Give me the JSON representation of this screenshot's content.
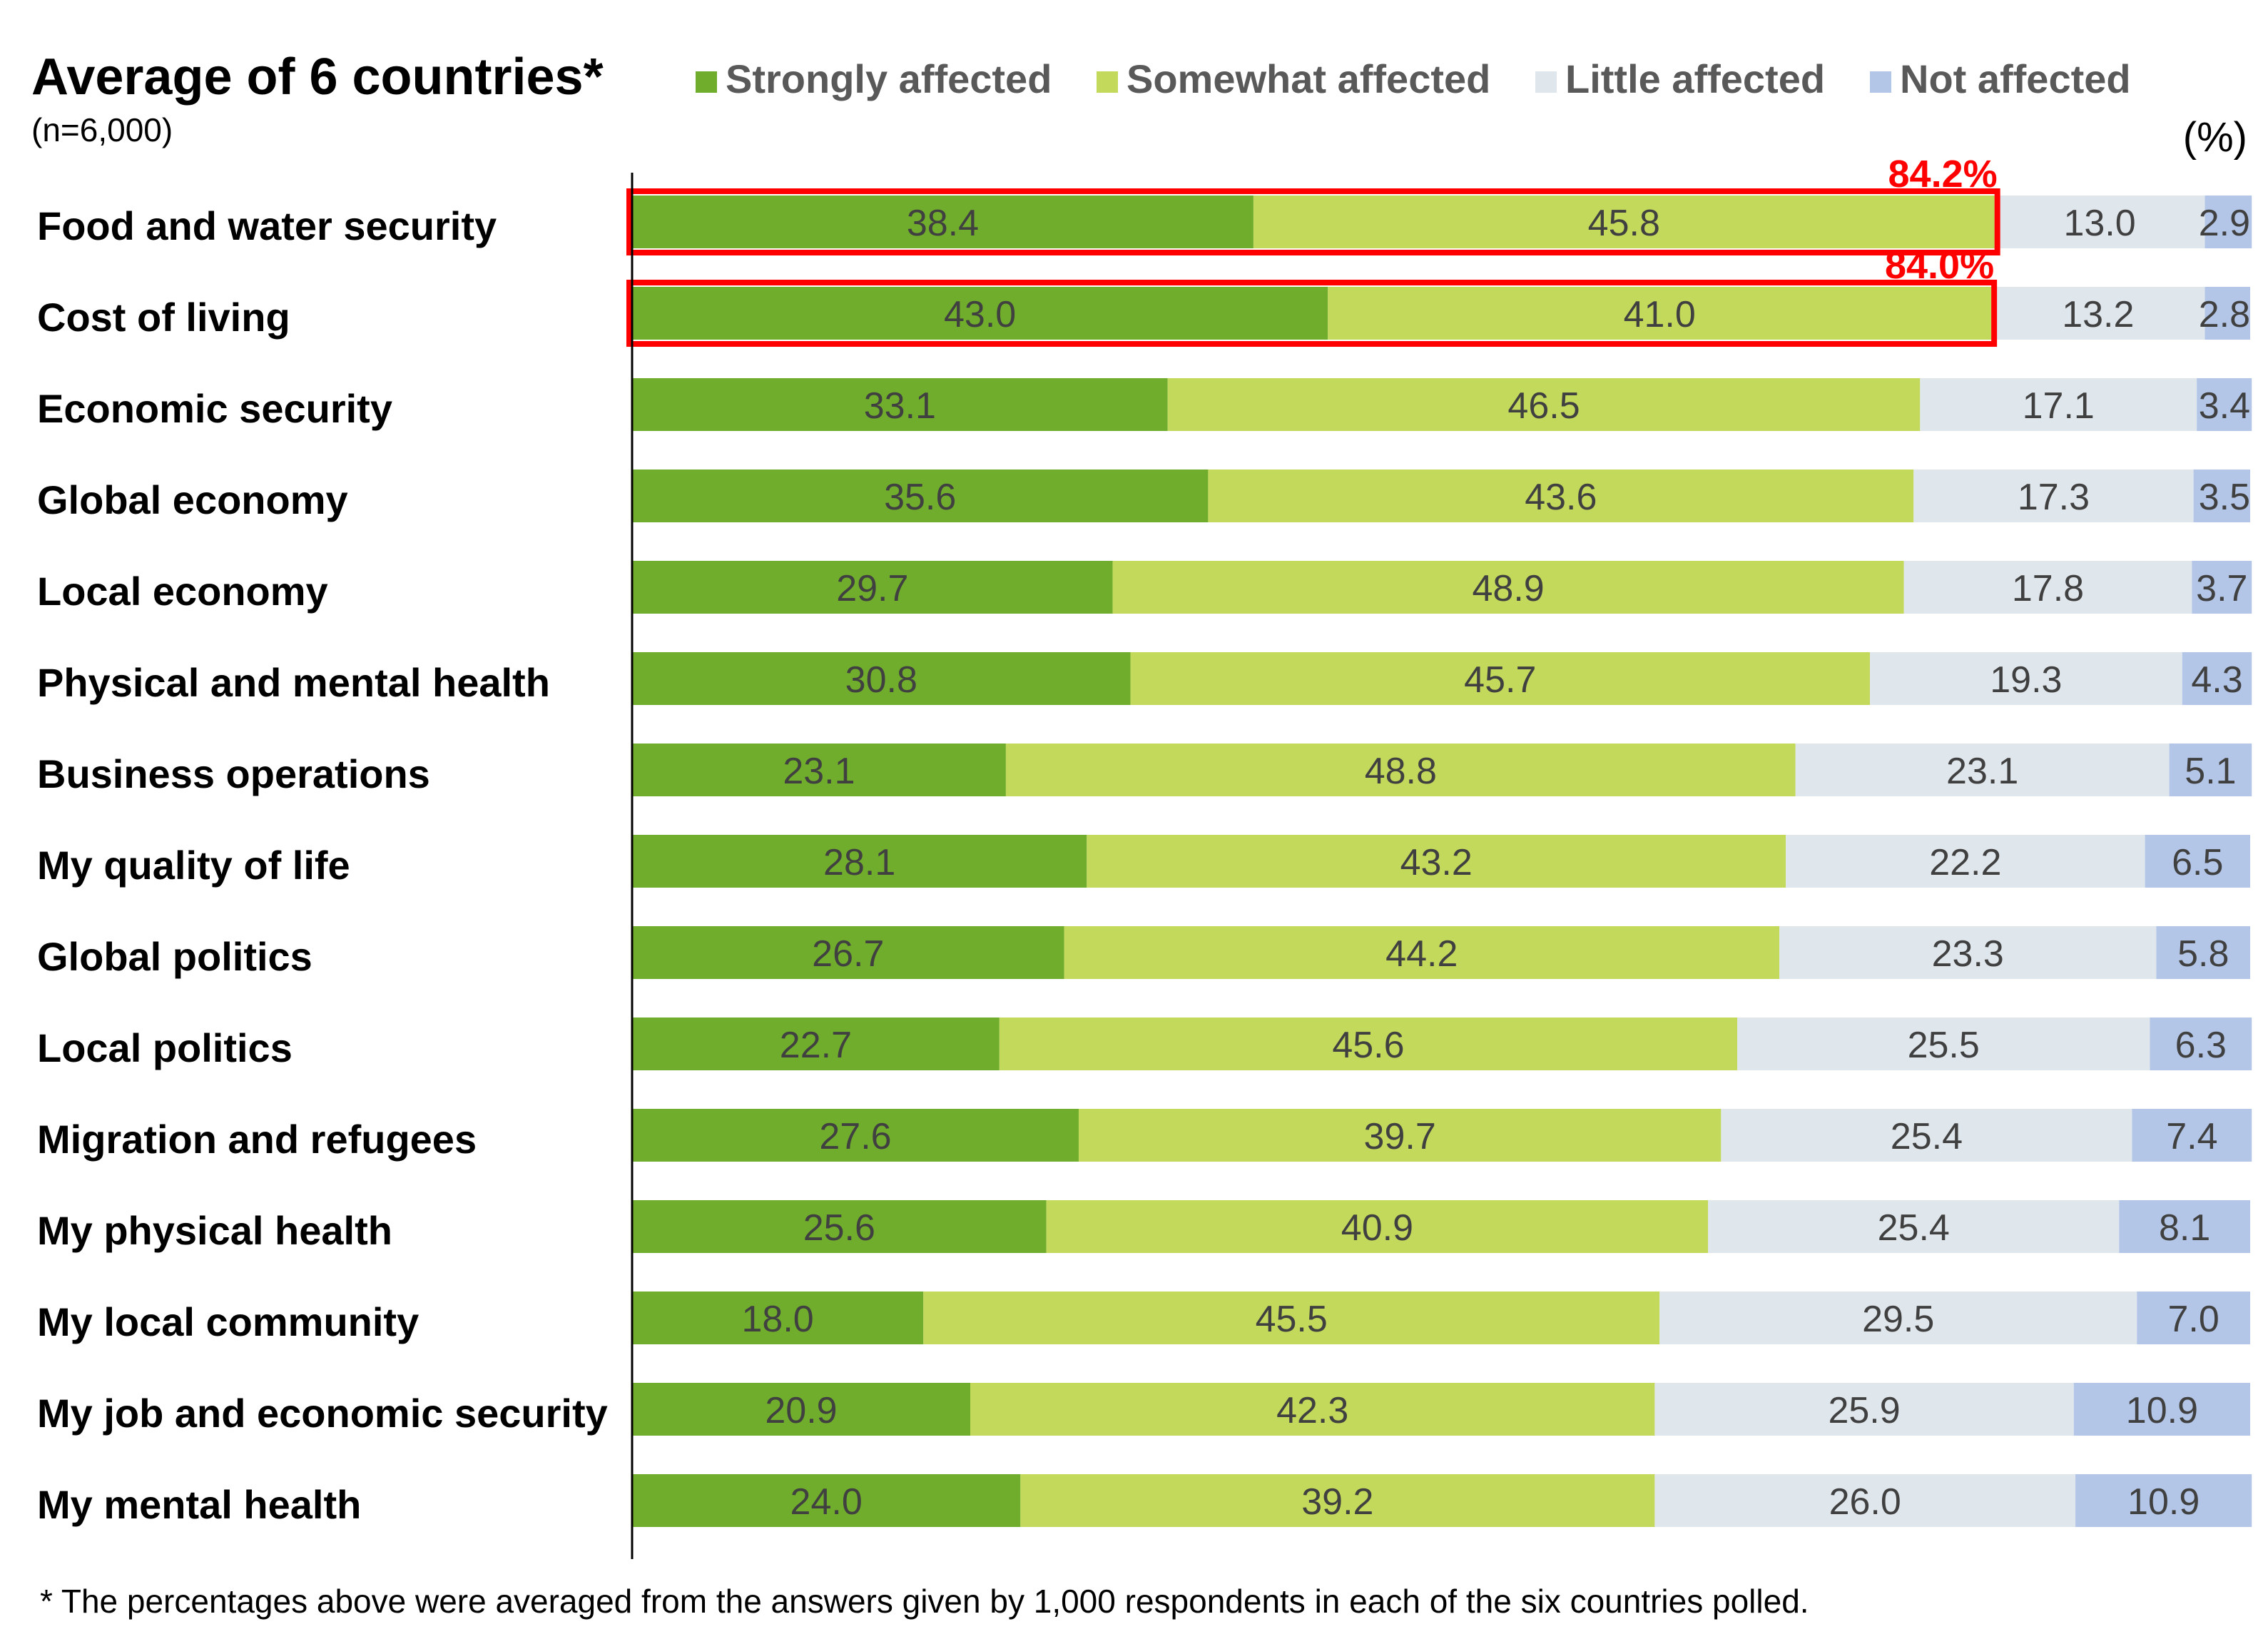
{
  "chart_data": {
    "type": "bar",
    "orientation": "horizontal",
    "stacked": true,
    "title": "Average of 6 countries*",
    "subtitle": "(n=6,000)",
    "unit_label": "(%)",
    "xlim": [
      0,
      100
    ],
    "footnote": "* The percentages above were averaged from the answers given by 1,000 respondents in each of the six countries polled.",
    "categories": [
      "Food and water security",
      "Cost of living",
      "Economic security",
      "Global economy",
      "Local economy",
      "Physical and mental health",
      "Business operations",
      "My quality of life",
      "Global politics",
      "Local politics",
      "Migration and refugees",
      "My physical health",
      "My local community",
      "My job and economic security",
      "My mental health"
    ],
    "series": [
      {
        "name": "Strongly affected",
        "color": "#70ad2c",
        "values": [
          38.4,
          43.0,
          33.1,
          35.6,
          29.7,
          30.8,
          23.1,
          28.1,
          26.7,
          22.7,
          27.6,
          25.6,
          18.0,
          20.9,
          24.0
        ]
      },
      {
        "name": "Somewhat affected",
        "color": "#c3d95b",
        "values": [
          45.8,
          41.0,
          46.5,
          43.6,
          48.9,
          45.7,
          48.8,
          43.2,
          44.2,
          45.6,
          39.7,
          40.9,
          45.5,
          42.3,
          39.2
        ]
      },
      {
        "name": "Little affected",
        "color": "#dfe6ec",
        "values": [
          13.0,
          13.2,
          17.1,
          17.3,
          17.8,
          19.3,
          23.1,
          22.2,
          23.3,
          25.5,
          25.4,
          25.4,
          29.5,
          25.9,
          26.0
        ]
      },
      {
        "name": "Not affected",
        "color": "#b4c6e7",
        "values": [
          2.9,
          2.8,
          3.4,
          3.5,
          3.7,
          4.3,
          5.1,
          6.5,
          5.8,
          6.3,
          7.4,
          8.1,
          7.0,
          10.9,
          10.9
        ]
      }
    ],
    "highlights": [
      {
        "category_index": 0,
        "label": "84.2%",
        "color": "#ff0000"
      },
      {
        "category_index": 1,
        "label": "84.0%",
        "color": "#ff0000"
      }
    ],
    "label_color": "#404040"
  }
}
